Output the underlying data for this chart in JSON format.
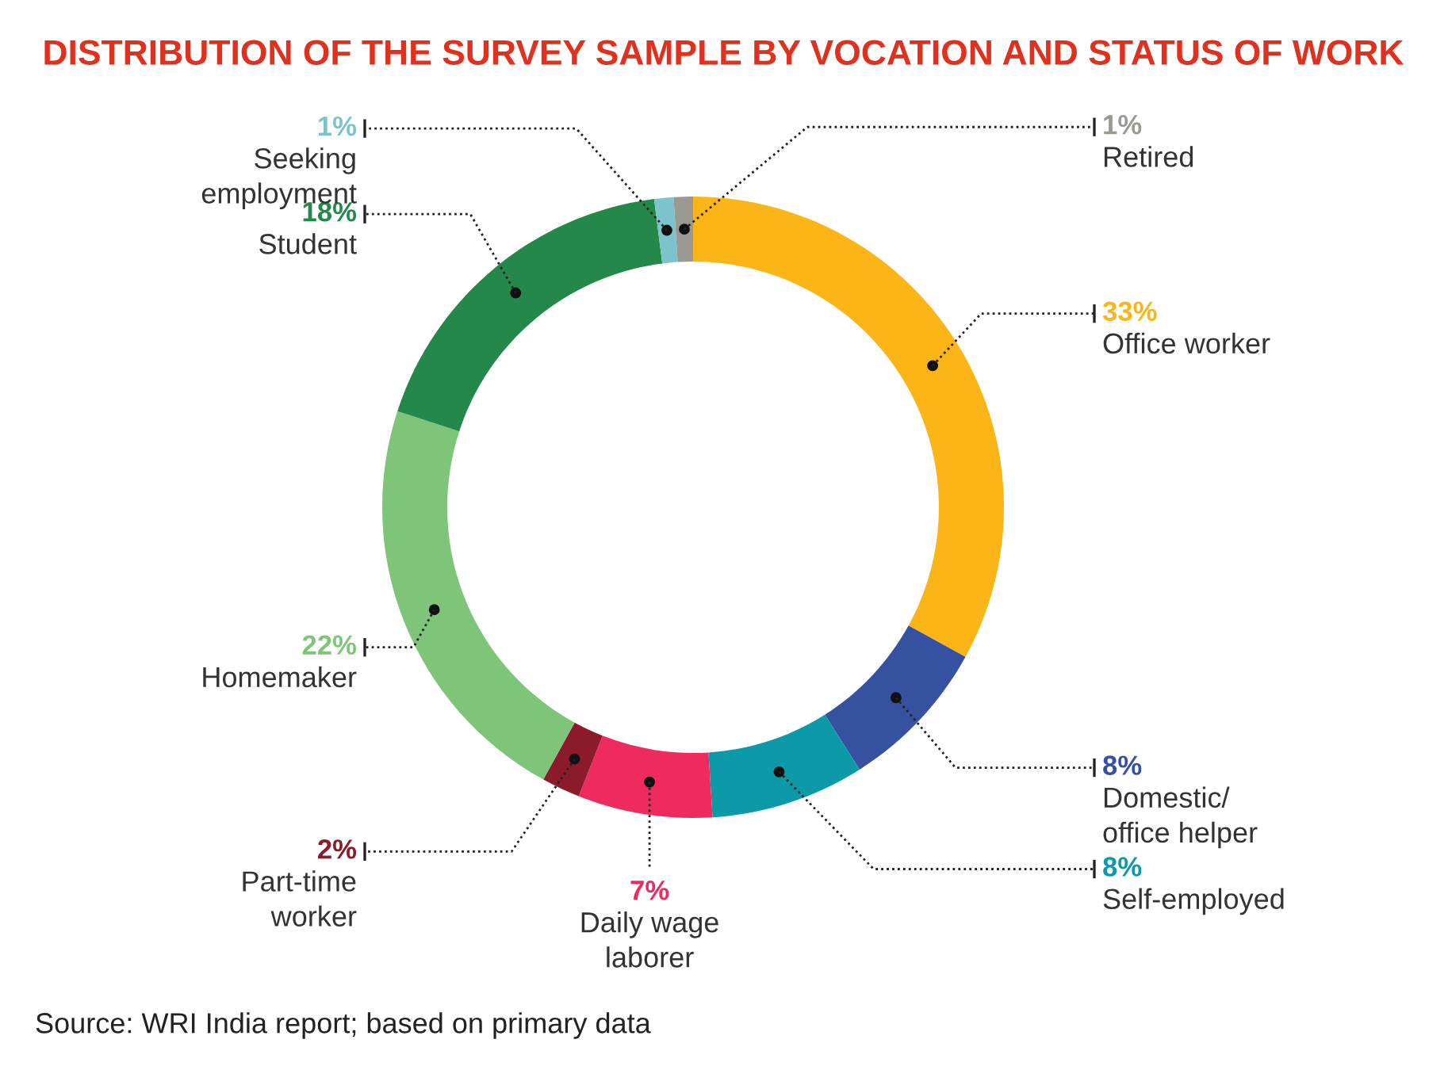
{
  "chart_data": {
    "type": "donut",
    "title": "DISTRIBUTION OF THE SURVEY SAMPLE BY VOCATION AND STATUS OF WORK",
    "categories": [
      "Office worker",
      "Domestic/\noffice helper",
      "Self-employed",
      "Daily wage\nlaborer",
      "Part-time\nworker",
      "Homemaker",
      "Student",
      "Seeking\nemployment",
      "Retired"
    ],
    "values": [
      33,
      8,
      8,
      7,
      2,
      22,
      18,
      1,
      1
    ],
    "value_labels": [
      "33%",
      "8%",
      "8%",
      "7%",
      "2%",
      "22%",
      "18%",
      "1%",
      "1%"
    ],
    "colors": [
      "#fbb516",
      "#36519f",
      "#0d9aa8",
      "#ee2a5e",
      "#8b1a2a",
      "#7ec57a",
      "#23884a",
      "#7dc3cc",
      "#9a9a93"
    ],
    "annotations": [
      "Source: WRI India report; based on primary data"
    ]
  }
}
